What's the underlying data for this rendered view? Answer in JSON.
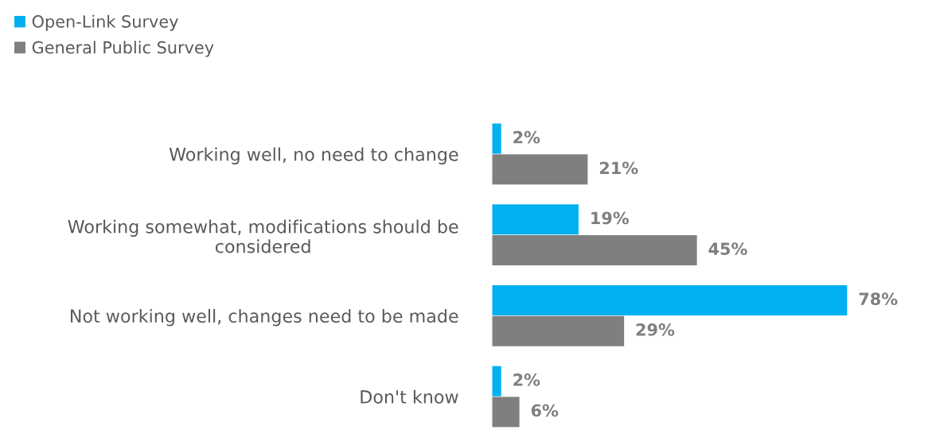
{
  "chart_data": {
    "type": "bar",
    "orientation": "horizontal",
    "categories": [
      "Working well, no need to change",
      "Working somewhat, modifications should be considered",
      "Not working well, changes need to be made",
      "Don't know"
    ],
    "series": [
      {
        "name": "Open-Link Survey",
        "color": "#00b0f0",
        "values": [
          2,
          19,
          78,
          2
        ],
        "value_labels": [
          "2%",
          "19%",
          "78%",
          "2%"
        ]
      },
      {
        "name": "General Public Survey",
        "color": "#7f7f7f",
        "values": [
          21,
          45,
          29,
          6
        ],
        "value_labels": [
          "21%",
          "45%",
          "29%",
          "6%"
        ]
      }
    ],
    "legend": "top left",
    "grid": false,
    "tick_labels": "y"
  }
}
